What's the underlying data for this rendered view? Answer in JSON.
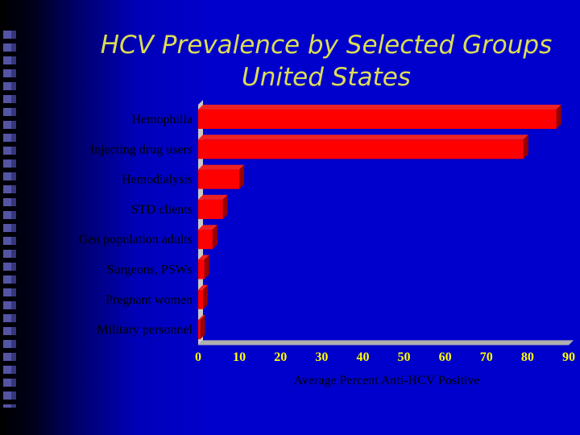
{
  "slide": {
    "title_line1": "HCV Prevalence by Selected Groups",
    "title_line2": "United States"
  },
  "colors": {
    "background": "#0000cc",
    "title": "#dddd55",
    "bar_front": "#ff0000",
    "bar_top": "#ee2222",
    "bar_side": "#990000",
    "axis_tick_labels": "#ffff00",
    "category_labels": "#000000"
  },
  "chart_data": {
    "type": "bar",
    "orientation": "horizontal",
    "categories": [
      "Hemophilia",
      "Injecting drug users",
      "Hemodialysis",
      "STD clients",
      "Gen population adults",
      "Surgeons, PSWs",
      "Pregnant women",
      "Military personnel"
    ],
    "values": [
      87,
      79,
      10,
      6,
      3.5,
      1.5,
      1.2,
      0.5
    ],
    "xlabel": "Average Percent Anti-HCV Positive",
    "ylabel": "",
    "xlim": [
      0,
      90
    ],
    "xticks": [
      0,
      10,
      20,
      30,
      40,
      50,
      60,
      70,
      80,
      90
    ],
    "grid": false,
    "legend": "none",
    "style": "3d"
  }
}
